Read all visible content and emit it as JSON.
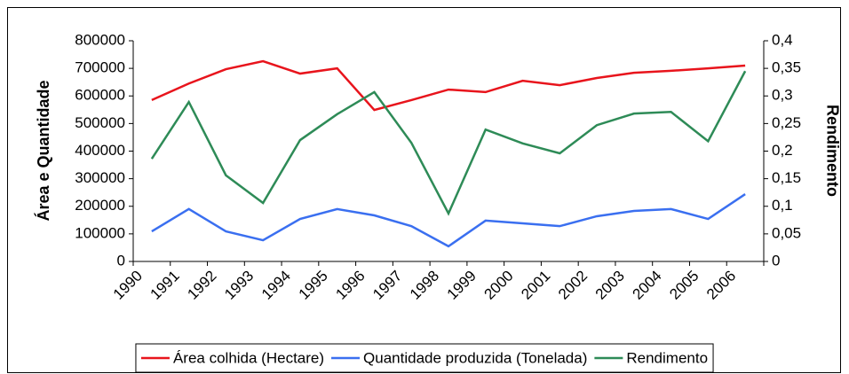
{
  "chart_data": {
    "type": "line",
    "categories": [
      "1990",
      "1991",
      "1992",
      "1993",
      "1994",
      "1995",
      "1996",
      "1997",
      "1998",
      "1999",
      "2000",
      "2001",
      "2002",
      "2003",
      "2004",
      "2005",
      "2006"
    ],
    "series": [
      {
        "name": "Área colhida (Hectare)",
        "color": "#e8141c",
        "values": [
          585000,
          645000,
          697000,
          726000,
          681000,
          700000,
          549000,
          585000,
          623000,
          614000,
          655000,
          639000,
          665000,
          684000,
          691000,
          700000,
          710000
        ]
      },
      {
        "name": "Quantidade produzida (Tonelada)",
        "color": "#3a6ff0",
        "values": [
          109000,
          190000,
          109000,
          77000,
          154000,
          190000,
          167000,
          128000,
          55000,
          148000,
          138000,
          128000,
          164000,
          183000,
          190000,
          154000,
          244000
        ]
      },
      {
        "name": "Rendimento",
        "color": "#2e8b57",
        "axis": "y2",
        "values": [
          0.186,
          0.289,
          0.156,
          0.106,
          0.22,
          0.267,
          0.307,
          0.215,
          0.087,
          0.239,
          0.214,
          0.196,
          0.247,
          0.268,
          0.271,
          0.218,
          0.345
        ]
      }
    ],
    "y_label": "Área e Quantidade",
    "y2_label": "Rendimento",
    "ylim": [
      0,
      800000
    ],
    "yticks": [
      0,
      100000,
      200000,
      300000,
      400000,
      500000,
      600000,
      700000,
      800000
    ],
    "y2lim": [
      0,
      0.4
    ],
    "y2ticks": [
      0,
      {
        "value": 0.05,
        "label": "0,05"
      },
      {
        "value": 0.1,
        "label": "0,1"
      },
      {
        "value": 0.15,
        "label": "0,15"
      },
      {
        "value": 0.2,
        "label": "0,2"
      },
      {
        "value": 0.25,
        "label": "0,25"
      },
      {
        "value": 0.3,
        "label": "0,3"
      },
      {
        "value": 0.35,
        "label": "0,35"
      },
      {
        "value": 0.4,
        "label": "0,4"
      }
    ],
    "grid": false,
    "legend": "bottom"
  }
}
